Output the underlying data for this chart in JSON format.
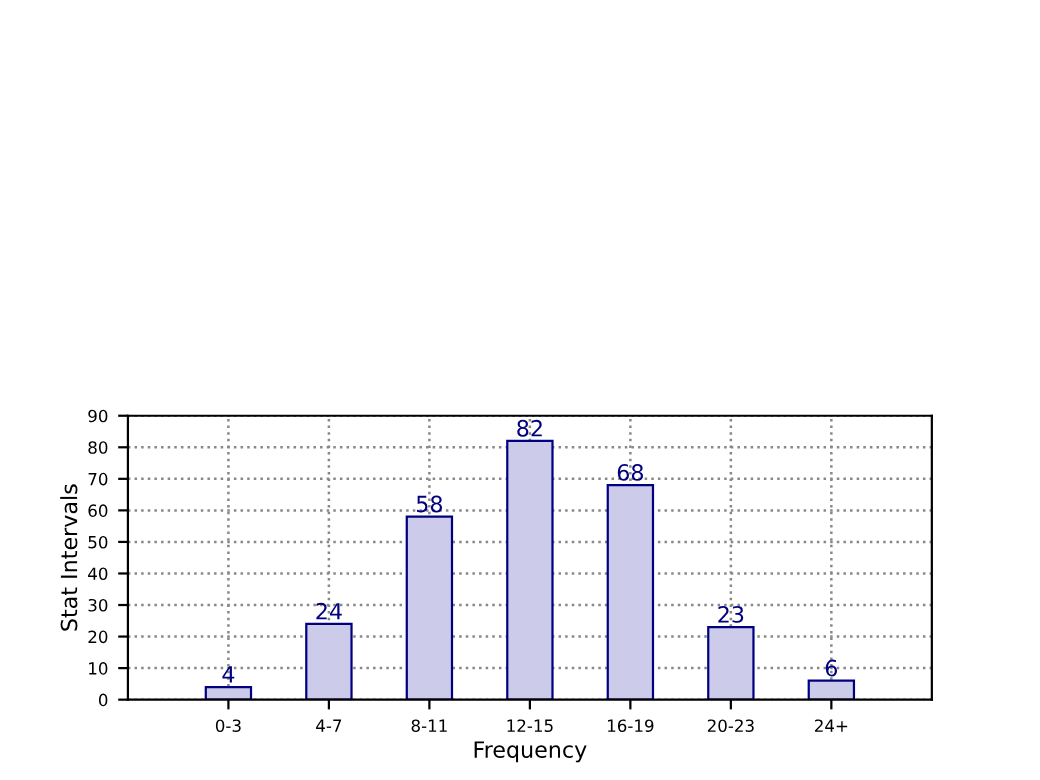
{
  "chart_data": {
    "type": "bar",
    "xlabel": "Frequency",
    "ylabel": "Stat Intervals",
    "categories": [
      "0-3",
      "4-7",
      "8-11",
      "12-15",
      "16-19",
      "20-23",
      "24+"
    ],
    "values": [
      4,
      24,
      58,
      82,
      68,
      23,
      6
    ],
    "color": "#ccccea",
    "ylim": [
      0,
      90
    ],
    "yticks": [
      0,
      10,
      20,
      30,
      40,
      50,
      60,
      70,
      80,
      90
    ],
    "grid": true,
    "data_labels": true
  }
}
